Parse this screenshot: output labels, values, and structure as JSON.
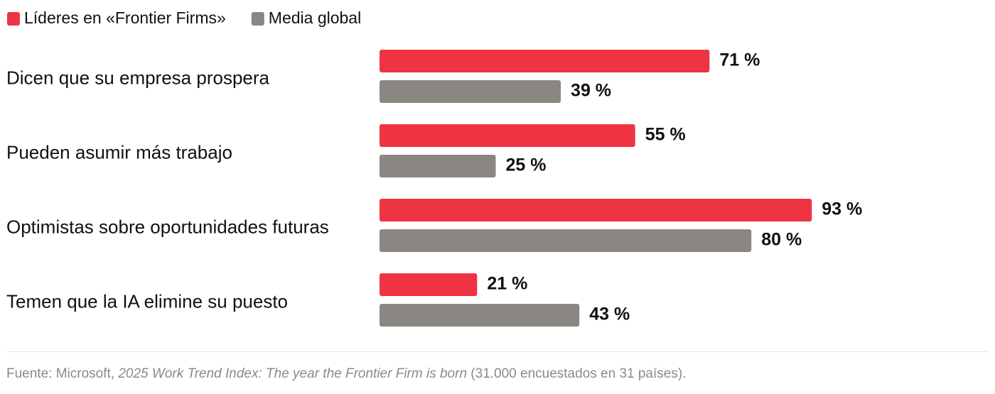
{
  "chart_data": {
    "type": "bar",
    "orientation": "horizontal",
    "categories": [
      "Dicen que su empresa prospera",
      "Pueden asumir más trabajo",
      "Optimistas sobre oportunidades futuras",
      "Temen que la IA elimine su puesto"
    ],
    "series": [
      {
        "name": "Líderes en «Frontier Firms»",
        "color": "#ee3342",
        "values": [
          71,
          55,
          93,
          21
        ],
        "value_labels": [
          "71 %",
          "55 %",
          "93 %",
          "21 %"
        ]
      },
      {
        "name": "Media global",
        "color": "#8a8782",
        "values": [
          39,
          25,
          80,
          43
        ],
        "value_labels": [
          "39 %",
          "25 %",
          "80 %",
          "43 %"
        ]
      }
    ],
    "xlim": [
      0,
      100
    ],
    "source": {
      "prefix": "Fuente: Microsoft, ",
      "title": "2025 Work Trend Index: The year the Frontier Firm is born",
      "suffix": " (31.000 encuestados en 31 países)."
    }
  }
}
